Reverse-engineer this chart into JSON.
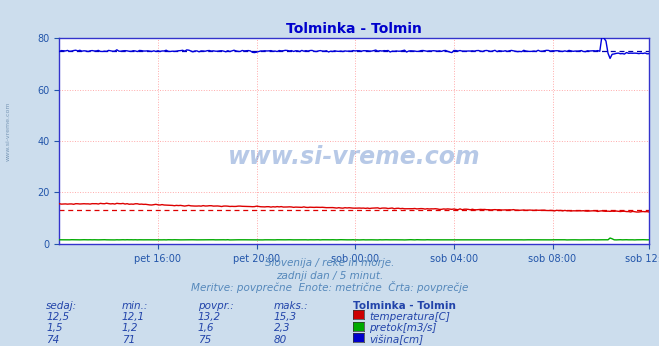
{
  "title": "Tolminka - Tolmin",
  "title_color": "#0000cc",
  "bg_color": "#ccdded",
  "plot_bg_color": "#ffffff",
  "border_color": "#3333cc",
  "grid_color": "#ffaaaa",
  "xlabel_color": "#2255aa",
  "ylabel_color": "#2255aa",
  "ylim": [
    0,
    80
  ],
  "yticks": [
    0,
    20,
    40,
    60,
    80
  ],
  "n_points": 288,
  "xtick_labels": [
    "pet 16:00",
    "pet 20:00",
    "sob 00:00",
    "sob 04:00",
    "sob 08:00",
    "sob 12:00"
  ],
  "xtick_positions": [
    48,
    96,
    144,
    192,
    240,
    287
  ],
  "temp_color": "#dd0000",
  "temp_avg_color": "#dd0000",
  "pretok_color": "#00aa00",
  "visina_color": "#0000dd",
  "visina_avg_color": "#0000aa",
  "subtitle1": "Slovenija / reke in morje.",
  "subtitle2": "zadnji dan / 5 minut.",
  "subtitle3": "Meritve: povprečne  Enote: metrične  Črta: povprečje",
  "subtitle_color": "#5588bb",
  "watermark": "www.si-vreme.com",
  "watermark_color": "#3366bb",
  "side_watermark": "www.si-vreme.com",
  "side_watermark_color": "#6688aa",
  "table_header": [
    "sedaj:",
    "min.:",
    "povpr.:",
    "maks.:",
    "Tolminka - Tolmin"
  ],
  "table_color": "#2244aa",
  "rows": [
    {
      "sedaj": "12,5",
      "min": "12,1",
      "povpr": "13,2",
      "maks": "15,3",
      "label": "temperatura[C]",
      "color": "#cc0000"
    },
    {
      "sedaj": "1,5",
      "min": "1,2",
      "povpr": "1,6",
      "maks": "2,3",
      "label": "pretok[m3/s]",
      "color": "#00aa00"
    },
    {
      "sedaj": "74",
      "min": "71",
      "povpr": "75",
      "maks": "80",
      "label": "višina[cm]",
      "color": "#0000cc"
    }
  ]
}
